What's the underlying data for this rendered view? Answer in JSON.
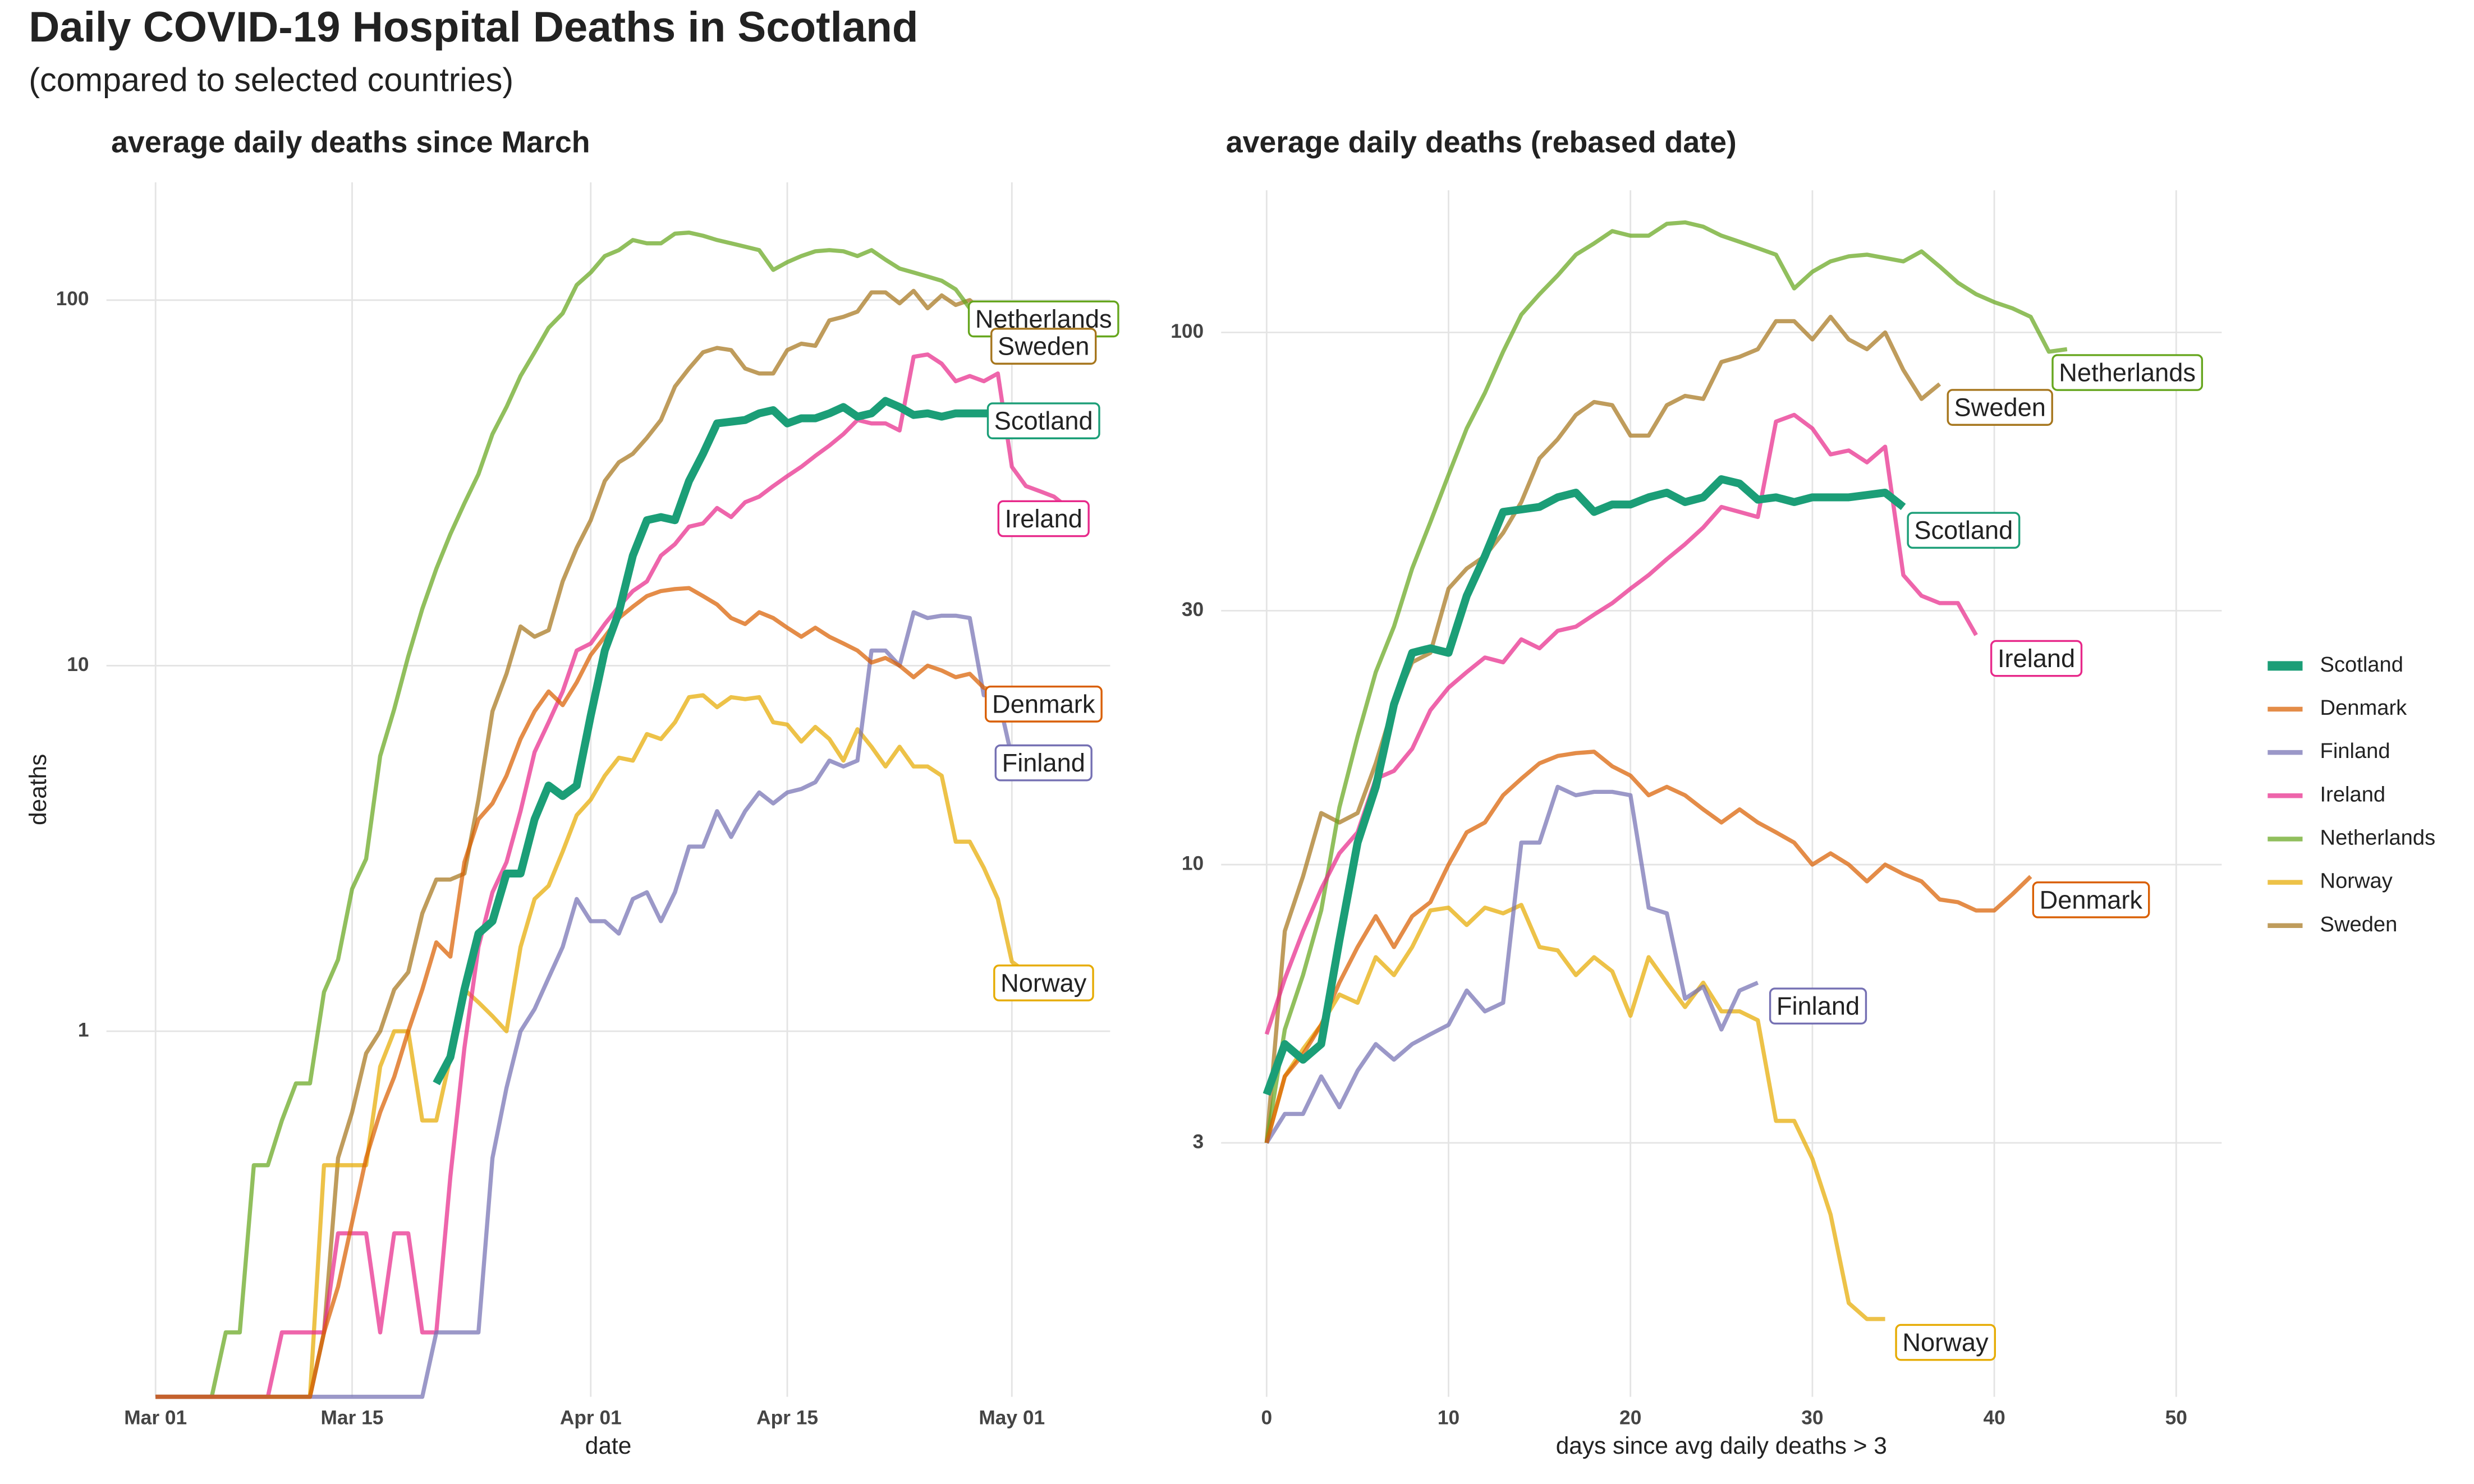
{
  "title": "Daily COVID-19 Hospital Deaths in Scotland",
  "subtitle": "(compared to selected countries)",
  "chart_data": [
    {
      "type": "line",
      "title": "average daily deaths since March",
      "x_label": "date",
      "y_label": "deaths",
      "log_y": true,
      "grid": true,
      "x": [
        0,
        1,
        2,
        3,
        4,
        5,
        6,
        7,
        8,
        9,
        10,
        11,
        12,
        13,
        14,
        15,
        16,
        17,
        18,
        19,
        20,
        21,
        22,
        23,
        24,
        25,
        26,
        27,
        28,
        29,
        30,
        31,
        32,
        33,
        34,
        35,
        36,
        37,
        38,
        39,
        40,
        41,
        42,
        43,
        44,
        45,
        46,
        47,
        48,
        49,
        50,
        51,
        52,
        53,
        54,
        55,
        56,
        57,
        58,
        59,
        60,
        61,
        62,
        63,
        64,
        65,
        66,
        67
      ],
      "xlim": [
        -3.5,
        68
      ],
      "xticks": [
        {
          "value": 0,
          "label": "Mar 01"
        },
        {
          "value": 14,
          "label": "Mar 15"
        },
        {
          "value": 31,
          "label": "Apr 01"
        },
        {
          "value": 45,
          "label": "Apr 15"
        },
        {
          "value": 61,
          "label": "May 01"
        }
      ],
      "ylim": [
        0.1,
        210
      ],
      "yticks": [
        1,
        10,
        100
      ],
      "series": [
        {
          "name": "Scotland",
          "color": "#1b9e77",
          "values": [
            null,
            null,
            null,
            null,
            null,
            null,
            null,
            null,
            null,
            null,
            null,
            null,
            null,
            null,
            null,
            null,
            null,
            null,
            null,
            null,
            0.72,
            0.85,
            1.3,
            1.85,
            2.0,
            2.7,
            2.7,
            3.8,
            4.7,
            4.4,
            4.7,
            7.3,
            11,
            14,
            20,
            25,
            25.5,
            25,
            32,
            38,
            46,
            46.5,
            47,
            49,
            50,
            46,
            47.5,
            47.5,
            49,
            51,
            48,
            49,
            53,
            51,
            48.5,
            49,
            48,
            49,
            49,
            49,
            49,
            49,
            50,
            null,
            null,
            null,
            null,
            null
          ]
        },
        {
          "name": "Denmark",
          "color": "#d95f02",
          "values": [
            0.1,
            0.1,
            0.1,
            0.1,
            0.1,
            0.1,
            0.1,
            0.1,
            0.1,
            0.1,
            0.1,
            0.1,
            0.15,
            0.2,
            0.3,
            0.45,
            0.6,
            0.75,
            1.0,
            1.3,
            1.75,
            1.6,
            2.9,
            3.8,
            4.2,
            5,
            6.3,
            7.5,
            8.5,
            7.8,
            9,
            10.7,
            12,
            13.5,
            14.5,
            15.5,
            16,
            16.2,
            16.3,
            15.5,
            14.7,
            13.5,
            13,
            14,
            13.5,
            12.7,
            12,
            12.7,
            12,
            11.5,
            11,
            10.2,
            10.5,
            10,
            9.3,
            10,
            9.7,
            9.3,
            9.5,
            8.7,
            8.5,
            8.3,
            8.3,
            8.4,
            null,
            null,
            null,
            null
          ]
        },
        {
          "name": "Finland",
          "color": "#7570b3",
          "values": [
            0.1,
            0.1,
            0.1,
            0.1,
            0.1,
            0.1,
            0.1,
            0.1,
            0.1,
            0.1,
            0.1,
            0.1,
            0.1,
            0.1,
            0.1,
            0.1,
            0.1,
            0.1,
            0.1,
            0.1,
            0.15,
            0.15,
            0.15,
            0.15,
            0.45,
            0.7,
            1.0,
            1.15,
            1.4,
            1.7,
            2.3,
            2.0,
            2.0,
            1.85,
            2.3,
            2.4,
            2.0,
            2.4,
            3.2,
            3.2,
            4.0,
            3.4,
            4.0,
            4.5,
            4.2,
            4.5,
            4.6,
            4.8,
            5.5,
            5.3,
            5.5,
            11,
            11,
            10,
            14,
            13.5,
            13.7,
            13.7,
            13.5,
            8.3,
            8.3,
            5.6,
            5.8,
            4.9,
            5.8,
            null,
            null,
            null
          ]
        },
        {
          "name": "Ireland",
          "color": "#e7298a",
          "values": [
            0.1,
            0.1,
            0.1,
            0.1,
            0.1,
            0.1,
            0.1,
            0.1,
            0.1,
            0.15,
            0.15,
            0.15,
            0.15,
            0.28,
            0.28,
            0.28,
            0.15,
            0.28,
            0.28,
            0.15,
            0.15,
            0.4,
            0.9,
            1.7,
            2.4,
            2.9,
            4,
            5.8,
            7,
            8.5,
            11,
            11.5,
            13,
            14.5,
            16,
            17,
            20,
            21.5,
            24,
            24.5,
            27,
            25.5,
            28,
            29,
            31,
            33,
            35,
            37.5,
            40,
            43,
            47,
            46,
            46,
            44,
            70,
            71,
            67,
            60,
            62,
            60,
            63,
            35,
            31,
            30,
            29,
            27,
            null,
            null
          ]
        },
        {
          "name": "Netherlands",
          "color": "#66a61e",
          "values": [
            0.1,
            0.1,
            0.1,
            0.1,
            0.1,
            0.15,
            0.15,
            0.43,
            0.43,
            0.57,
            0.72,
            0.72,
            1.28,
            1.57,
            2.45,
            2.96,
            5.66,
            7.6,
            10.6,
            14.3,
            18.4,
            22.9,
            27.8,
            33.4,
            43,
            51,
            62,
            72,
            84,
            92,
            110,
            119,
            132,
            137,
            146,
            143,
            143,
            152,
            153,
            150,
            146,
            143,
            140,
            137,
            121,
            127,
            132,
            136,
            137,
            136,
            132,
            137,
            129,
            122,
            119,
            116,
            113,
            107,
            95,
            95,
            95,
            95,
            95,
            95,
            95,
            95,
            95,
            95
          ]
        },
        {
          "name": "Norway",
          "color": "#e6ab02",
          "values": [
            0.1,
            0.1,
            0.1,
            0.1,
            0.1,
            0.1,
            0.1,
            0.1,
            0.1,
            0.1,
            0.1,
            0.1,
            0.43,
            0.43,
            0.43,
            0.43,
            0.8,
            1.0,
            1.0,
            0.57,
            0.57,
            0.85,
            1.3,
            1.2,
            1.1,
            1.0,
            1.7,
            2.3,
            2.5,
            3.1,
            3.9,
            4.3,
            5.0,
            5.6,
            5.5,
            6.5,
            6.3,
            7.0,
            8.2,
            8.3,
            7.7,
            8.2,
            8.1,
            8.2,
            7.0,
            6.9,
            6.2,
            6.8,
            6.3,
            5.5,
            6.7,
            6.0,
            5.3,
            6.0,
            5.3,
            5.3,
            5.0,
            3.3,
            3.3,
            2.8,
            2.3,
            1.55,
            1.45,
            null,
            null,
            null,
            null,
            null
          ]
        },
        {
          "name": "Sweden",
          "color": "#a6761d",
          "values": [
            0.1,
            0.1,
            0.1,
            0.1,
            0.1,
            0.1,
            0.1,
            0.1,
            0.1,
            0.1,
            0.1,
            0.1,
            0.15,
            0.45,
            0.6,
            0.87,
            1.0,
            1.3,
            1.45,
            2.1,
            2.6,
            2.6,
            2.7,
            4.3,
            7.5,
            9.5,
            12.8,
            12,
            12.5,
            17,
            21,
            25,
            32,
            36,
            38,
            42,
            47,
            58,
            65,
            72,
            74,
            73,
            65,
            63,
            63,
            73,
            76,
            75,
            88,
            90,
            93,
            105,
            105,
            98,
            106,
            95,
            103,
            97,
            100,
            92,
            88,
            85,
            82,
            80,
            80,
            80,
            80,
            80
          ]
        }
      ]
    },
    {
      "type": "line",
      "title": "average daily deaths (rebased date)",
      "x_label": "days since avg daily deaths > 3",
      "log_y": true,
      "grid": true,
      "legend": "right",
      "x": [
        0,
        1,
        2,
        3,
        4,
        5,
        6,
        7,
        8,
        9,
        10,
        11,
        12,
        13,
        14,
        15,
        16,
        17,
        18,
        19,
        20,
        21,
        22,
        23,
        24,
        25,
        26,
        27,
        28,
        29,
        30,
        31,
        32,
        33,
        34,
        35,
        36,
        37,
        38,
        39,
        40,
        41,
        42,
        43,
        44
      ],
      "xlim": [
        -2.5,
        52.5
      ],
      "xticks": [
        0,
        10,
        20,
        30,
        40,
        50
      ],
      "ylim": [
        1,
        185
      ],
      "yticks": [
        3,
        10,
        30,
        100
      ],
      "series": [
        {
          "name": "Scotland",
          "color": "#1b9e77",
          "values": [
            3.7,
            4.6,
            4.3,
            4.6,
            7.2,
            11,
            14,
            20,
            25,
            25.5,
            25,
            32,
            38,
            46,
            46.5,
            47,
            49,
            50,
            46,
            47.5,
            47.5,
            49,
            50,
            48,
            49,
            53,
            52,
            48.5,
            49,
            48,
            49,
            49,
            49,
            49.5,
            50,
            47,
            null,
            null,
            null,
            null,
            null,
            null,
            null,
            null,
            null
          ]
        },
        {
          "name": "Denmark",
          "color": "#d95f02",
          "values": [
            3,
            4,
            4.4,
            5,
            6,
            7,
            8,
            7,
            8,
            8.5,
            10,
            11.5,
            12,
            13.5,
            14.5,
            15.5,
            16,
            16.2,
            16.3,
            15.3,
            14.7,
            13.5,
            14,
            13.5,
            12.7,
            12,
            12.7,
            12,
            11.5,
            11,
            10,
            10.5,
            10,
            9.3,
            10,
            9.6,
            9.3,
            8.6,
            8.5,
            8.2,
            8.2,
            8.8,
            9.5,
            null,
            null
          ]
        },
        {
          "name": "Finland",
          "color": "#7570b3",
          "values": [
            3,
            3.4,
            3.4,
            4,
            3.5,
            4.1,
            4.6,
            4.3,
            4.6,
            4.8,
            5,
            5.8,
            5.3,
            5.5,
            11,
            11,
            14,
            13.5,
            13.7,
            13.7,
            13.5,
            8.3,
            8.1,
            5.6,
            5.9,
            4.9,
            5.8,
            6.0,
            null,
            null,
            null,
            null,
            null,
            null,
            null,
            null,
            null,
            null,
            null,
            null,
            null,
            null,
            null,
            null,
            null
          ]
        },
        {
          "name": "Ireland",
          "color": "#e7298a",
          "values": [
            4.8,
            6.1,
            7.5,
            9,
            10.5,
            11.5,
            14.5,
            15,
            16.5,
            19.5,
            21.5,
            23,
            24.5,
            24,
            26.5,
            25.5,
            27.5,
            28,
            29.5,
            31,
            33,
            35,
            37.5,
            40,
            43,
            47,
            46,
            45,
            68,
            70,
            66,
            59,
            60,
            57,
            61,
            35,
            32,
            31,
            31,
            27,
            null,
            null,
            null,
            null,
            null
          ]
        },
        {
          "name": "Netherlands",
          "color": "#66a61e",
          "values": [
            3,
            4.9,
            6.2,
            8.2,
            12.8,
            17.4,
            23,
            28,
            36,
            44,
            54,
            66,
            77,
            92,
            108,
            118,
            128,
            140,
            147,
            155,
            152,
            152,
            160,
            161,
            158,
            152,
            148,
            144,
            140,
            121,
            130,
            136,
            139,
            140,
            138,
            136,
            142,
            133,
            124,
            118,
            114,
            111,
            107,
            92,
            93
          ]
        },
        {
          "name": "Norway",
          "color": "#e6ab02",
          "values": [
            3,
            4,
            4.5,
            5,
            5.7,
            5.5,
            6.7,
            6.2,
            7,
            8.2,
            8.3,
            7.7,
            8.3,
            8.1,
            8.4,
            7,
            6.9,
            6.2,
            6.7,
            6.3,
            5.2,
            6.7,
            6,
            5.4,
            6,
            5.3,
            5.3,
            5.1,
            3.3,
            3.3,
            2.8,
            2.2,
            1.5,
            1.4,
            1.4,
            null,
            null,
            null,
            null,
            null,
            null,
            null,
            null,
            null,
            null
          ]
        },
        {
          "name": "Sweden",
          "color": "#a6761d",
          "values": [
            3,
            7.5,
            9.5,
            12.5,
            12,
            12.5,
            15.5,
            20,
            24,
            25,
            33,
            36,
            38,
            42,
            48,
            58,
            63,
            70,
            74,
            73,
            64,
            64,
            73,
            76,
            75,
            88,
            90,
            93,
            105,
            105,
            97,
            107,
            97,
            93,
            100,
            85,
            75,
            80,
            null,
            null,
            null,
            null,
            null,
            null,
            null
          ]
        }
      ]
    }
  ]
}
